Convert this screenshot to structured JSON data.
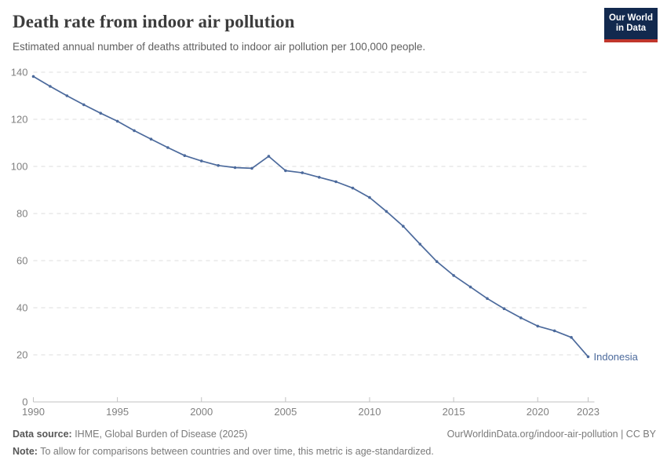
{
  "header": {
    "title": "Death rate from indoor air pollution",
    "subtitle": "Estimated annual number of deaths attributed to indoor air pollution per 100,000 people."
  },
  "logo": {
    "line1": "Our World",
    "line2": "in Data"
  },
  "chart_data": {
    "type": "line",
    "title": "Death rate from indoor air pollution",
    "xlabel": "",
    "ylabel": "",
    "x": [
      1990,
      1991,
      1992,
      1993,
      1994,
      1995,
      1996,
      1997,
      1998,
      1999,
      2000,
      2001,
      2002,
      2003,
      2004,
      2005,
      2006,
      2007,
      2008,
      2009,
      2010,
      2011,
      2012,
      2013,
      2014,
      2015,
      2016,
      2017,
      2018,
      2019,
      2020,
      2021,
      2022,
      2023
    ],
    "series": [
      {
        "name": "Indonesia",
        "values": [
          138.2,
          134.0,
          130.0,
          126.2,
          122.6,
          119.2,
          115.2,
          111.6,
          108.0,
          104.6,
          102.3,
          100.4,
          99.5,
          99.2,
          104.3,
          98.2,
          97.3,
          95.4,
          93.5,
          90.8,
          86.8,
          80.9,
          74.6,
          67.0,
          59.6,
          53.7,
          48.8,
          43.9,
          39.6,
          35.7,
          32.2,
          30.2,
          27.4,
          19.2
        ]
      }
    ],
    "ylim": [
      0,
      140
    ],
    "xlim": [
      1990,
      2023
    ],
    "yticks": [
      0,
      20,
      40,
      60,
      80,
      100,
      120,
      140
    ],
    "xticks": [
      1990,
      1995,
      2000,
      2005,
      2010,
      2015,
      2020,
      2023
    ],
    "grid": "horizontal-dashed",
    "legend_position": "end-of-line-label",
    "colors": {
      "line": "#4c6a9c",
      "gridline": "#dcdcdc",
      "axis": "#c2c2c2",
      "tick_label": "#808080"
    }
  },
  "footer": {
    "source_label": "Data source:",
    "source_text": " IHME, Global Burden of Disease (2025)",
    "rights": "OurWorldinData.org/indoor-air-pollution | CC BY",
    "note_label": "Note:",
    "note_text": " To allow for comparisons between countries and over time, this metric is age-standardized."
  }
}
